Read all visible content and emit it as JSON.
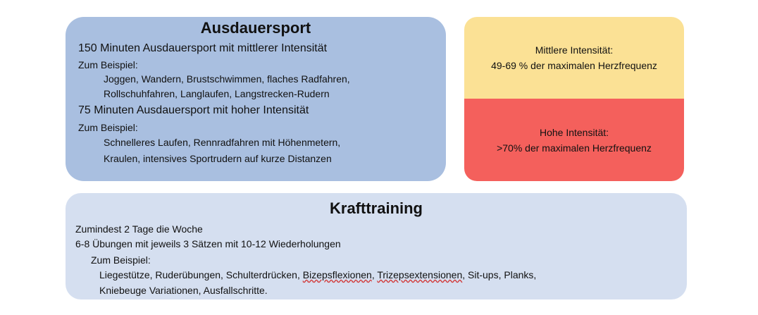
{
  "ausdauer": {
    "title": "Ausdauersport",
    "moderate_heading": "150 Minuten Ausdauersport mit mittlerer Intensität",
    "moderate_example_label": "Zum Beispiel:",
    "moderate_examples_line1": "Joggen, Wandern, Brustschwimmen, flaches Radfahren,",
    "moderate_examples_line2": "Rollschuhfahren, Langlaufen, Langstrecken-Rudern",
    "high_heading": "75 Minuten Ausdauersport mit hoher Intensität",
    "high_example_label": "Zum Beispiel:",
    "high_examples_line1": "Schnelleres Laufen, Rennradfahren mit Höhenmetern,",
    "high_examples_line2": "Kraulen, intensives Sportrudern auf kurze Distanzen"
  },
  "intensity": {
    "moderate_label": "Mittlere Intensität:",
    "moderate_value": "49-69 % der maximalen Herzfrequenz",
    "high_label": "Hohe Intensität:",
    "high_value": ">70% der maximalen Herzfrequenz"
  },
  "kraft": {
    "title": "Krafttraining",
    "line1": "Zumindest 2 Tage die Woche",
    "line2": "6-8 Übungen mit jeweils 3 Sätzen mit 10-12 Wiederholungen",
    "example_label": "Zum Beispiel:",
    "ex_part1": "Liegestütze, Ruderübungen, Schulterdrücken, ",
    "ex_bizeps": "Bizepsflexionen",
    "ex_sep": ", ",
    "ex_trizeps": "Trizepsextensionen",
    "ex_part2": ", Sit-ups, Planks,",
    "ex_line2": "Kniebeuge Variationen, Ausfallschritte."
  },
  "colors": {
    "ausdauer_bg": "#a9bfe0",
    "moderate_bg": "#fbe195",
    "high_bg": "#f4605c",
    "kraft_bg": "#d5dff0"
  }
}
